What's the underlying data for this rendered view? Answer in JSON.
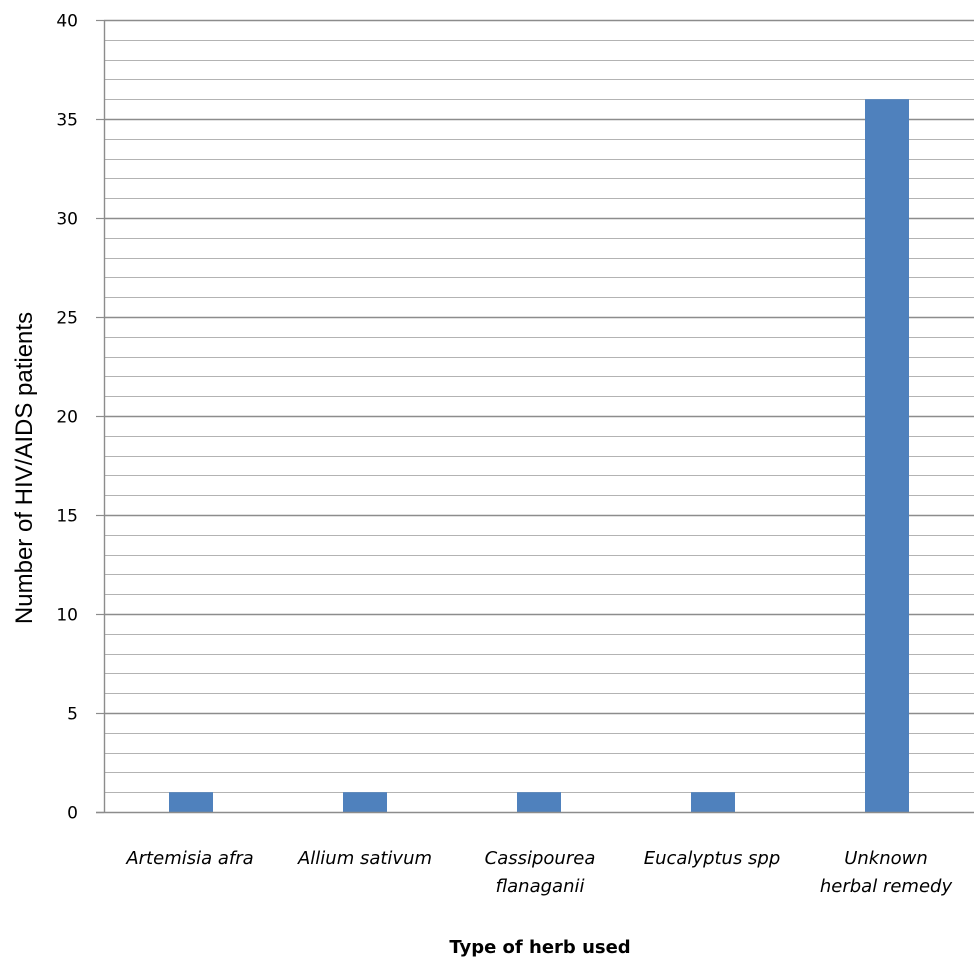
{
  "chart_data": {
    "type": "bar",
    "title": "",
    "xlabel": "Type of herb used",
    "ylabel": "Number of HIV/AIDS patients",
    "categories": [
      [
        "Artemisia afra"
      ],
      [
        "Allium sativum"
      ],
      [
        "Cassipourea",
        "flanaganii"
      ],
      [
        "Eucalyptus spp"
      ],
      [
        "Unknown",
        "herbal remedy"
      ]
    ],
    "values": [
      1,
      1,
      1,
      1,
      36
    ],
    "ylim": [
      0,
      40
    ],
    "yticks": [
      0,
      5,
      10,
      15,
      20,
      25,
      30,
      35,
      40
    ],
    "minor_grid_step": 1,
    "grid": true,
    "legend": "none",
    "bar_color": "#4f81bd",
    "grid_color": "#b3b3b3",
    "major_grid_color": "#8c8c8c"
  }
}
